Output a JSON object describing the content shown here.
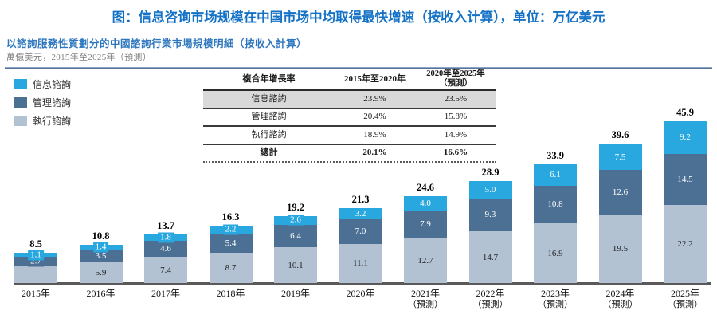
{
  "header": {
    "title": "图：信息咨询市场规模在中国市场中均取得最快增速（按收入计算），单位：万亿美元",
    "subtitle": "以諮詢服務性質劃分的中國諮詢行業市場規模明細（按收入計算）",
    "unit_line": "萬億美元，2015年至2025年（預測）"
  },
  "legend": {
    "items": [
      {
        "label": "信息諮詢",
        "color": "#29A8E0"
      },
      {
        "label": "管理諮詢",
        "color": "#4C6F94"
      },
      {
        "label": "執行諮詢",
        "color": "#B3C2D3"
      }
    ]
  },
  "table": {
    "header": {
      "col1": "複合年增長率",
      "col2": "2015年至2020年",
      "col3_line1": "2020年至2025年",
      "col3_line2": "（預測）"
    },
    "rows": [
      {
        "label": "信息諮詢",
        "v1": "23.9%",
        "v2": "23.5%"
      },
      {
        "label": "管理諮詢",
        "v1": "20.4%",
        "v2": "15.8%"
      },
      {
        "label": "執行諮詢",
        "v1": "18.9%",
        "v2": "14.9%"
      },
      {
        "label": "總計",
        "v1": "20.1%",
        "v2": "16.6%"
      }
    ]
  },
  "chart_data": {
    "type": "bar",
    "stacked": true,
    "unit": "萬億美元",
    "grid": false,
    "legend_position": "left",
    "ylim": [
      0,
      48
    ],
    "categories": [
      "2015年",
      "2016年",
      "2017年",
      "2018年",
      "2019年",
      "2020年",
      "2021年",
      "2022年",
      "2023年",
      "2024年",
      "2025年"
    ],
    "category_notes": [
      "",
      "",
      "",
      "",
      "",
      "",
      "（預測）",
      "（預測）",
      "（預測）",
      "（預測）",
      "（預測）"
    ],
    "totals": [
      "8.5",
      "10.8",
      "13.7",
      "16.3",
      "19.2",
      "21.3",
      "24.6",
      "28.9",
      "33.9",
      "39.6",
      "45.9"
    ],
    "series": [
      {
        "name": "信息諮詢",
        "color": "#29A8E0",
        "label_color": "#FFFFFF",
        "values": [
          1.1,
          1.4,
          1.8,
          2.2,
          2.6,
          3.2,
          4.0,
          5.0,
          6.1,
          7.5,
          9.2
        ],
        "labels": [
          "1.1",
          "1.4",
          "1.8",
          "2.2",
          "2.6",
          "3.2",
          "4.0",
          "5.0",
          "6.1",
          "7.5",
          "9.2"
        ]
      },
      {
        "name": "管理諮詢",
        "color": "#4C6F94",
        "label_color": "#FFFFFF",
        "values": [
          2.7,
          3.5,
          4.6,
          5.4,
          6.4,
          7.0,
          7.9,
          9.3,
          10.8,
          12.6,
          14.5
        ],
        "labels": [
          "2.7",
          "3.5",
          "4.6",
          "5.4",
          "6.4",
          "7.0",
          "7.9",
          "9.3",
          "10.8",
          "12.6",
          "14.5"
        ]
      },
      {
        "name": "執行諮詢",
        "color": "#B3C2D3",
        "label_color": "#222222",
        "values": [
          4.7,
          5.9,
          7.4,
          8.7,
          10.1,
          11.1,
          12.7,
          14.7,
          16.9,
          19.5,
          22.2
        ],
        "labels": [
          "",
          "5.9",
          "7.4",
          "8.7",
          "10.1",
          "11.1",
          "12.7",
          "14.7",
          "16.9",
          "19.5",
          "22.2"
        ]
      }
    ]
  }
}
